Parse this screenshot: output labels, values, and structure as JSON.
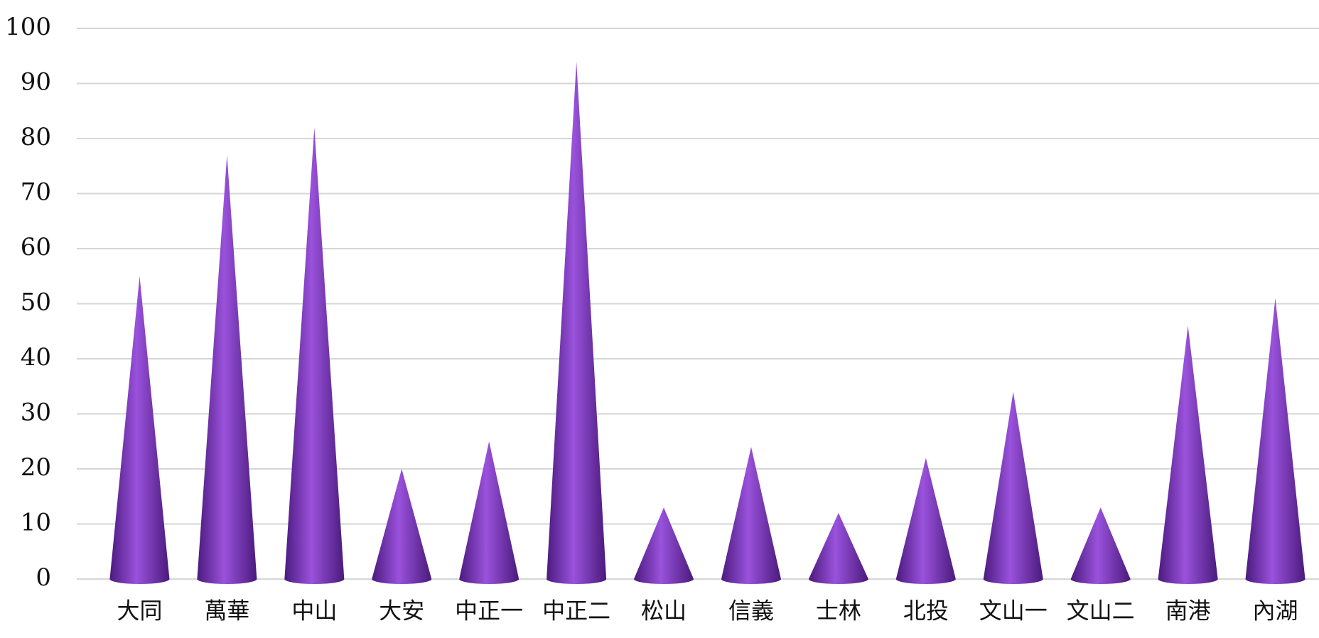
{
  "chart_data": {
    "type": "cone",
    "categories": [
      "大同",
      "萬華",
      "中山",
      "大安",
      "中正一",
      "中正二",
      "松山",
      "信義",
      "士林",
      "北投",
      "文山一",
      "文山二",
      "南港",
      "內湖"
    ],
    "values": [
      55,
      77,
      82,
      20,
      25,
      94,
      13,
      24,
      12,
      22,
      34,
      13,
      46,
      51
    ],
    "color": "#7a2fc0",
    "ylim": [
      0,
      100
    ],
    "yticks": [
      0,
      10,
      20,
      30,
      40,
      50,
      60,
      70,
      80,
      90,
      100
    ],
    "grid": true
  }
}
